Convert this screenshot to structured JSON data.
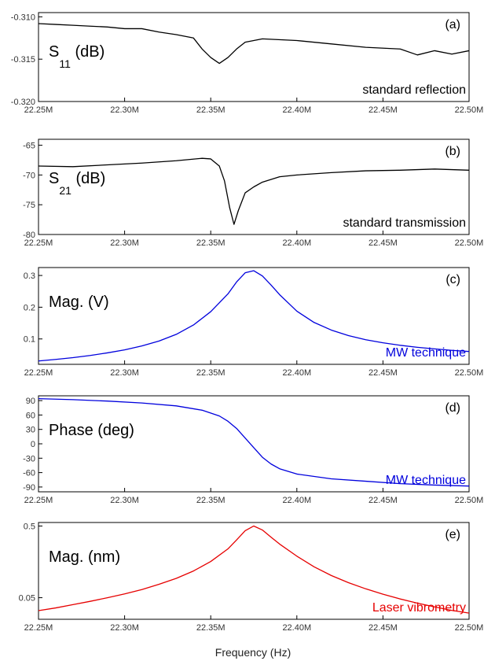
{
  "figure": {
    "xlabel": "Frequency (Hz)",
    "xtick_labels": [
      "22.25M",
      "22.30M",
      "22.35M",
      "22.40M",
      "22.45M",
      "22.50M"
    ]
  },
  "colors": {
    "black": "#000000",
    "blue": "#0000dd",
    "red": "#e60000"
  },
  "chart_data": [
    {
      "type": "line",
      "letter": "(a)",
      "ylabel_main": "S",
      "ylabel_sub": "11",
      "ylabel_unit": " (dB)",
      "annotation": "standard reflection",
      "color": "black",
      "xlim": [
        22.25,
        22.5
      ],
      "ylim": [
        -0.32,
        -0.3095
      ],
      "ytick_values": [
        -0.31,
        -0.315,
        -0.32
      ],
      "ytick_labels": [
        "-0.310",
        "-0.315",
        "-0.320"
      ],
      "points": [
        [
          22.25,
          -0.3108
        ],
        [
          22.26,
          -0.3109
        ],
        [
          22.27,
          -0.311
        ],
        [
          22.28,
          -0.3111
        ],
        [
          22.29,
          -0.3112
        ],
        [
          22.3,
          -0.3114
        ],
        [
          22.31,
          -0.3114
        ],
        [
          22.32,
          -0.3118
        ],
        [
          22.33,
          -0.3121
        ],
        [
          22.34,
          -0.3125
        ],
        [
          22.345,
          -0.3138
        ],
        [
          22.35,
          -0.3148
        ],
        [
          22.355,
          -0.3155
        ],
        [
          22.36,
          -0.3148
        ],
        [
          22.365,
          -0.3138
        ],
        [
          22.37,
          -0.313
        ],
        [
          22.38,
          -0.3126
        ],
        [
          22.4,
          -0.3128
        ],
        [
          22.42,
          -0.3132
        ],
        [
          22.44,
          -0.3136
        ],
        [
          22.46,
          -0.3138
        ],
        [
          22.47,
          -0.3145
        ],
        [
          22.48,
          -0.314
        ],
        [
          22.49,
          -0.3144
        ],
        [
          22.5,
          -0.314
        ]
      ]
    },
    {
      "type": "line",
      "letter": "(b)",
      "ylabel_main": "S",
      "ylabel_sub": "21",
      "ylabel_unit": " (dB)",
      "annotation": "standard transmission",
      "color": "black",
      "xlim": [
        22.25,
        22.5
      ],
      "ylim": [
        -80,
        -64
      ],
      "ytick_values": [
        -65,
        -70,
        -75,
        -80
      ],
      "ytick_labels": [
        "-65",
        "-70",
        "-75",
        "-80"
      ],
      "points": [
        [
          22.25,
          -68.5
        ],
        [
          22.27,
          -68.6
        ],
        [
          22.29,
          -68.3
        ],
        [
          22.31,
          -68.0
        ],
        [
          22.33,
          -67.6
        ],
        [
          22.345,
          -67.2
        ],
        [
          22.35,
          -67.3
        ],
        [
          22.355,
          -68.5
        ],
        [
          22.358,
          -71.0
        ],
        [
          22.361,
          -75.5
        ],
        [
          22.3635,
          -78.3
        ],
        [
          22.366,
          -76.0
        ],
        [
          22.37,
          -73.0
        ],
        [
          22.375,
          -72.0
        ],
        [
          22.38,
          -71.2
        ],
        [
          22.39,
          -70.3
        ],
        [
          22.4,
          -70.0
        ],
        [
          22.42,
          -69.6
        ],
        [
          22.44,
          -69.3
        ],
        [
          22.46,
          -69.2
        ],
        [
          22.48,
          -69.0
        ],
        [
          22.5,
          -69.2
        ]
      ]
    },
    {
      "type": "line",
      "letter": "(c)",
      "ylabel_main": "Mag. (V)",
      "ylabel_sub": "",
      "ylabel_unit": "",
      "annotation": "MW technique",
      "color": "blue",
      "xlim": [
        22.25,
        22.5
      ],
      "ylim": [
        0.02,
        0.325
      ],
      "ytick_values": [
        0.3,
        0.2,
        0.1
      ],
      "ytick_labels": [
        "0.3",
        "0.2",
        "0.1"
      ],
      "points": [
        [
          22.25,
          0.0306
        ],
        [
          22.26,
          0.0355
        ],
        [
          22.27,
          0.041
        ],
        [
          22.28,
          0.0479
        ],
        [
          22.29,
          0.0561
        ],
        [
          22.3,
          0.0655
        ],
        [
          22.31,
          0.0779
        ],
        [
          22.32,
          0.0935
        ],
        [
          22.33,
          0.1145
        ],
        [
          22.34,
          0.144
        ],
        [
          22.35,
          0.186
        ],
        [
          22.36,
          0.242
        ],
        [
          22.365,
          0.2795
        ],
        [
          22.37,
          0.3085
        ],
        [
          22.375,
          0.315
        ],
        [
          22.38,
          0.2985
        ],
        [
          22.385,
          0.27
        ],
        [
          22.39,
          0.2395
        ],
        [
          22.4,
          0.1875
        ],
        [
          22.41,
          0.152
        ],
        [
          22.42,
          0.128
        ],
        [
          22.43,
          0.1105
        ],
        [
          22.44,
          0.0976
        ],
        [
          22.45,
          0.0878
        ],
        [
          22.46,
          0.08
        ],
        [
          22.47,
          0.0737
        ],
        [
          22.48,
          0.0686
        ],
        [
          22.49,
          0.0641
        ],
        [
          22.5,
          0.0605
        ]
      ]
    },
    {
      "type": "line",
      "letter": "(d)",
      "ylabel_main": "Phase (deg)",
      "ylabel_sub": "",
      "ylabel_unit": "",
      "annotation": "MW technique",
      "color": "blue",
      "xlim": [
        22.25,
        22.5
      ],
      "ylim": [
        -100,
        100
      ],
      "ytick_values": [
        90,
        60,
        30,
        0,
        -30,
        -60,
        -90
      ],
      "ytick_labels": [
        "90",
        "60",
        "30",
        "0",
        "-30",
        "-60",
        "-90"
      ],
      "points": [
        [
          22.25,
          94
        ],
        [
          22.27,
          92
        ],
        [
          22.29,
          89
        ],
        [
          22.31,
          85
        ],
        [
          22.33,
          79
        ],
        [
          22.345,
          70
        ],
        [
          22.355,
          58
        ],
        [
          22.36,
          47
        ],
        [
          22.365,
          32
        ],
        [
          22.37,
          12
        ],
        [
          22.375,
          -8
        ],
        [
          22.38,
          -28
        ],
        [
          22.385,
          -42
        ],
        [
          22.39,
          -52
        ],
        [
          22.4,
          -63
        ],
        [
          22.42,
          -73
        ],
        [
          22.44,
          -78
        ],
        [
          22.46,
          -83
        ],
        [
          22.48,
          -86
        ],
        [
          22.5,
          -88
        ]
      ]
    },
    {
      "type": "line",
      "letter": "(e)",
      "ylabel_main": "Mag. (nm)",
      "ylabel_sub": "",
      "ylabel_unit": "",
      "annotation": "Laser vibrometry",
      "color": "red",
      "yscale": "log",
      "xlim": [
        22.25,
        22.5
      ],
      "ylim": [
        0.025,
        0.56
      ],
      "ytick_values": [
        0.5,
        0.05
      ],
      "ytick_labels": [
        "0.5",
        "0.05"
      ],
      "points": [
        [
          22.25,
          0.033
        ],
        [
          22.26,
          0.036
        ],
        [
          22.27,
          0.04
        ],
        [
          22.28,
          0.0445
        ],
        [
          22.29,
          0.05
        ],
        [
          22.3,
          0.0565
        ],
        [
          22.31,
          0.065
        ],
        [
          22.32,
          0.077
        ],
        [
          22.33,
          0.093
        ],
        [
          22.34,
          0.118
        ],
        [
          22.35,
          0.16
        ],
        [
          22.36,
          0.24
        ],
        [
          22.365,
          0.32
        ],
        [
          22.37,
          0.43
        ],
        [
          22.375,
          0.5
        ],
        [
          22.38,
          0.44
        ],
        [
          22.385,
          0.35
        ],
        [
          22.39,
          0.28
        ],
        [
          22.4,
          0.19
        ],
        [
          22.41,
          0.135
        ],
        [
          22.42,
          0.102
        ],
        [
          22.43,
          0.081
        ],
        [
          22.44,
          0.0665
        ],
        [
          22.45,
          0.056
        ],
        [
          22.46,
          0.048
        ],
        [
          22.47,
          0.042
        ],
        [
          22.48,
          0.0372
        ],
        [
          22.49,
          0.0332
        ],
        [
          22.5,
          0.0305
        ]
      ]
    }
  ]
}
